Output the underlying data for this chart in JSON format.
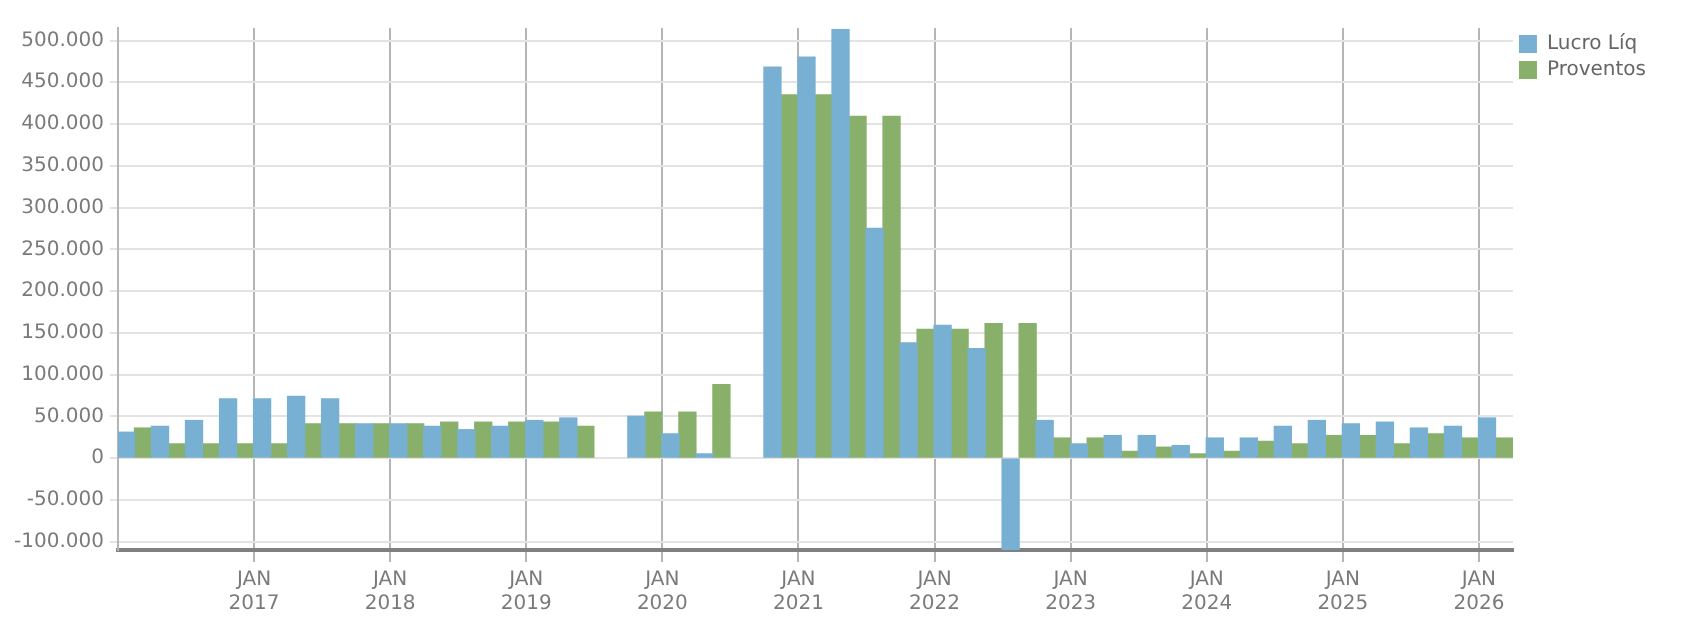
{
  "chart_data": {
    "type": "bar",
    "x": [
      "2016-02-15",
      "2016-05-15",
      "2016-08-15",
      "2016-11-15",
      "2017-02-15",
      "2017-05-15",
      "2017-08-15",
      "2017-11-15",
      "2018-02-15",
      "2018-05-15",
      "2018-08-15",
      "2018-11-15",
      "2019-02-15",
      "2019-05-15",
      "2019-08-15",
      "2019-11-15",
      "2020-02-15",
      "2020-05-15",
      "2020-08-15",
      "2020-11-15",
      "2021-02-15",
      "2021-05-15",
      "2021-08-15",
      "2021-11-15",
      "2022-02-15",
      "2022-05-15",
      "2022-08-15",
      "2022-11-15",
      "2023-02-15",
      "2023-05-15",
      "2023-08-15",
      "2023-11-15",
      "2024-02-15",
      "2024-05-15",
      "2024-08-15",
      "2024-11-15",
      "2025-02-15",
      "2025-05-15",
      "2025-08-15",
      "2025-11-15",
      "2026-02-15"
    ],
    "series": [
      {
        "name": "Lucro Líq",
        "color": "#78b0d3",
        "values": [
          31000,
          38000,
          45000,
          71000,
          71000,
          74000,
          71000,
          41000,
          41000,
          38000,
          34000,
          38000,
          45000,
          48000,
          null,
          50000,
          29000,
          5000,
          null,
          468000,
          480000,
          513000,
          275000,
          138000,
          159000,
          131000,
          -110000,
          45000,
          17000,
          27000,
          27000,
          15000,
          24000,
          24000,
          38000,
          45000,
          41000,
          43000,
          36000,
          38000,
          48000
        ]
      },
      {
        "name": "Proventos",
        "color": "#88b06a",
        "values": [
          36000,
          17000,
          17000,
          17000,
          17000,
          41000,
          41000,
          41000,
          41000,
          43000,
          43000,
          43000,
          43000,
          38000,
          null,
          55000,
          55000,
          88000,
          null,
          435000,
          435000,
          409000,
          409000,
          154000,
          154000,
          161000,
          161000,
          24000,
          24000,
          8000,
          13000,
          5000,
          8000,
          20000,
          17000,
          27000,
          27000,
          17000,
          29000,
          24000,
          24000
        ]
      }
    ],
    "xlim": [
      "2016-01",
      "2026-04"
    ],
    "xticks": [
      {
        "value": "2017-01",
        "label": "JAN\n2017"
      },
      {
        "value": "2018-01",
        "label": "JAN\n2018"
      },
      {
        "value": "2019-01",
        "label": "JAN\n2019"
      },
      {
        "value": "2020-01",
        "label": "JAN\n2020"
      },
      {
        "value": "2021-01",
        "label": "JAN\n2021"
      },
      {
        "value": "2022-01",
        "label": "JAN\n2022"
      },
      {
        "value": "2023-01",
        "label": "JAN\n2023"
      },
      {
        "value": "2024-01",
        "label": "JAN\n2024"
      },
      {
        "value": "2025-01",
        "label": "JAN\n2025"
      },
      {
        "value": "2026-01",
        "label": "JAN\n2026"
      }
    ],
    "ylim": [
      -110000,
      515000
    ],
    "yticks": [
      {
        "value": -100000,
        "label": "-100.000"
      },
      {
        "value": -50000,
        "label": "-50.000"
      },
      0,
      {
        "value": 50000,
        "label": "50.000"
      },
      {
        "value": 100000,
        "label": "100.000"
      },
      {
        "value": 150000,
        "label": "150.000"
      },
      {
        "value": 200000,
        "label": "200.000"
      },
      {
        "value": 250000,
        "label": "250.000"
      },
      {
        "value": 300000,
        "label": "300.000"
      },
      {
        "value": 350000,
        "label": "350.000"
      },
      {
        "value": 400000,
        "label": "400.000"
      },
      {
        "value": 450000,
        "label": "450.000"
      },
      {
        "value": 500000,
        "label": "500.000"
      }
    ],
    "grid": true,
    "legend": "top right"
  }
}
